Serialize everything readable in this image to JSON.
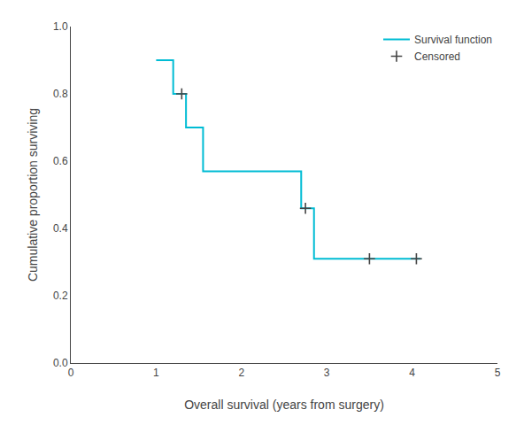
{
  "chart_data": {
    "type": "line",
    "xlabel": "Overall survival (years from surgery)",
    "ylabel": "Cumulative proportion surviving",
    "xlim": [
      0,
      5
    ],
    "ylim": [
      0.0,
      1.0
    ],
    "xticks": [
      0,
      1,
      2,
      3,
      4,
      5
    ],
    "yticks": [
      {
        "value": 0.0,
        "label": "0.0"
      },
      0.2,
      0.4,
      0.6,
      0.8,
      {
        "value": 1.0,
        "label": "1.0"
      }
    ],
    "grid": false,
    "legend": "upper right",
    "series": [
      {
        "name": "Survival function",
        "type": "line",
        "color": "#00bcd4",
        "line_style": "solid",
        "x": [
          1.0,
          1.0,
          1.2,
          1.2,
          1.35,
          1.35,
          1.55,
          1.55,
          2.7,
          2.7,
          2.85,
          2.85,
          4.1
        ],
        "values": [
          0.9,
          0.9,
          0.9,
          0.8,
          0.8,
          0.7,
          0.7,
          0.57,
          0.57,
          0.46,
          0.46,
          0.31,
          0.31
        ]
      },
      {
        "name": "Censored",
        "type": "scatter",
        "color": "#444444",
        "marker": "+",
        "x": [
          1.3,
          2.75,
          3.5,
          4.05
        ],
        "values": [
          0.8,
          0.46,
          0.31,
          0.31
        ]
      }
    ]
  }
}
